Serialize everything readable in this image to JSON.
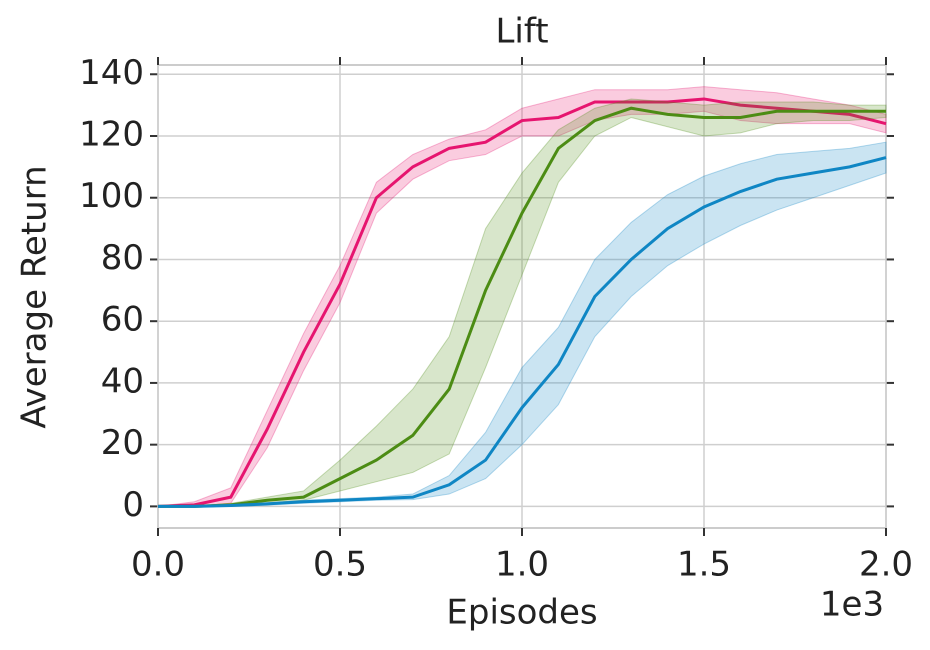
{
  "chart_data": {
    "type": "line",
    "title": "Lift",
    "x_label": "Episodes",
    "y_label": "Average Return",
    "x_offset_label": "1e3",
    "x": [
      0,
      0.1,
      0.2,
      0.3,
      0.4,
      0.5,
      0.6,
      0.7,
      0.8,
      0.9,
      1.0,
      1.1,
      1.2,
      1.3,
      1.4,
      1.5,
      1.6,
      1.7,
      1.8,
      1.9,
      2.0
    ],
    "series": [
      {
        "color": "#e6156f",
        "values": [
          0,
          0.5,
          3,
          25,
          50,
          72,
          100,
          110,
          116,
          118,
          125,
          126,
          131,
          131,
          131,
          132,
          130,
          129,
          128,
          127,
          124
        ],
        "lower": [
          0,
          0,
          1,
          19,
          44,
          66,
          95,
          106,
          112,
          114,
          120,
          120,
          125,
          127,
          127,
          128,
          125,
          124,
          124,
          124,
          121
        ],
        "upper": [
          0,
          1.5,
          6,
          31,
          56,
          78,
          105,
          114,
          119,
          122,
          129,
          132,
          135,
          135,
          135,
          136,
          135,
          134,
          132,
          130,
          127
        ]
      },
      {
        "color": "#4c8c14",
        "values": [
          0,
          0,
          0.5,
          2,
          3,
          9,
          15,
          23,
          38,
          70,
          95,
          116,
          125,
          129,
          127,
          126,
          126,
          128,
          128,
          128,
          128
        ],
        "lower": [
          0,
          0,
          0,
          1,
          2,
          5,
          8,
          11,
          17,
          45,
          75,
          105,
          120,
          126,
          123,
          120,
          121,
          124,
          125,
          125,
          126
        ],
        "upper": [
          0,
          0,
          1,
          3,
          5,
          15,
          26,
          38,
          55,
          90,
          108,
          122,
          129,
          132,
          131,
          130,
          131,
          131,
          131,
          130,
          130
        ]
      },
      {
        "color": "#0f86c4",
        "values": [
          0,
          0,
          0.3,
          0.8,
          1.5,
          2,
          2.5,
          3,
          7,
          15,
          32,
          46,
          68,
          80,
          90,
          97,
          102,
          106,
          108,
          110,
          113
        ],
        "lower": [
          0,
          0,
          0,
          0.4,
          1,
          1.5,
          2,
          2.2,
          4,
          9,
          20,
          33,
          55,
          68,
          78,
          85,
          91,
          96,
          100,
          104,
          108
        ],
        "upper": [
          0,
          0,
          0.6,
          1.2,
          2,
          2.5,
          3,
          4,
          10,
          24,
          45,
          58,
          80,
          92,
          101,
          107,
          111,
          114,
          115,
          116,
          118
        ]
      }
    ],
    "xlim": [
      0,
      2
    ],
    "ylim": [
      -7,
      143
    ],
    "xticks": [
      {
        "value": 0,
        "label": "0.0"
      },
      0.5,
      {
        "value": 1,
        "label": "1.0"
      },
      1.5,
      {
        "value": 2,
        "label": "2.0"
      }
    ],
    "yticks": [
      0,
      20,
      40,
      60,
      80,
      100,
      120,
      140
    ],
    "grid": true
  }
}
